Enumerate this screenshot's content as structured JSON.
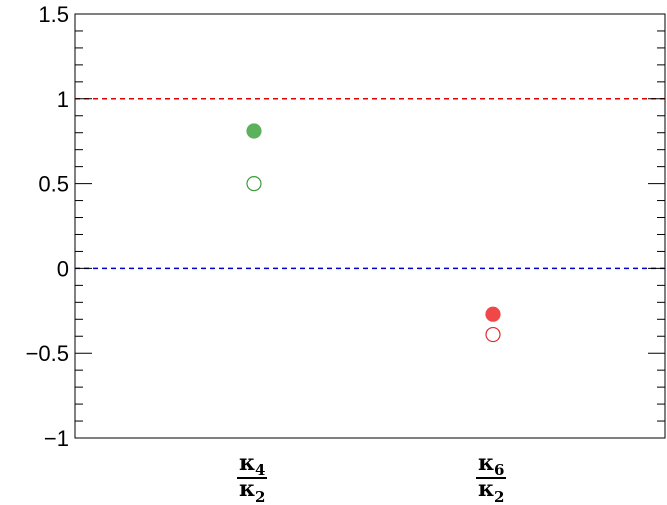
{
  "chart_data": {
    "type": "scatter",
    "title": "",
    "xlabel": "",
    "ylabel": "",
    "ylim": [
      -1,
      1.5
    ],
    "y_major_ticks": [
      -1,
      -0.5,
      0,
      0.5,
      1,
      1.5
    ],
    "y_tick_labels": [
      "−1",
      "−0.5",
      "0",
      "0.5",
      "1",
      "1.5"
    ],
    "y_minor_step": 0.1,
    "grid": false,
    "categories": [
      {
        "symbol": "κ",
        "num_index": "4",
        "den_index": "2"
      },
      {
        "symbol": "κ",
        "num_index": "6",
        "den_index": "2"
      }
    ],
    "points": [
      {
        "category": 0,
        "y": 0.81,
        "filled": true,
        "color": "#5cb25c"
      },
      {
        "category": 0,
        "y": 0.5,
        "filled": false,
        "color": "#3f9a3f"
      },
      {
        "category": 1,
        "y": -0.27,
        "filled": true,
        "color": "#f04848"
      },
      {
        "category": 1,
        "y": -0.39,
        "filled": false,
        "color": "#e02a2a"
      }
    ],
    "reference_lines": [
      {
        "y": 1,
        "color": "#e00000",
        "style": "dashed"
      },
      {
        "y": 0,
        "color": "#0000d0",
        "style": "dashed"
      }
    ]
  }
}
